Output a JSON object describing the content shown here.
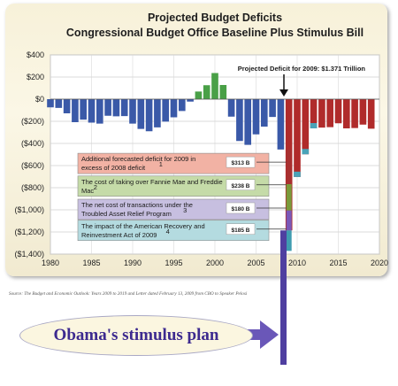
{
  "chart_data": {
    "type": "bar",
    "title": "Projected Budget Deficits",
    "subtitle": "Congressional Budget Office Baseline Plus Stimulus Bill",
    "ylabel": "",
    "xlabel": "",
    "ylim": [
      -1400,
      400
    ],
    "xlim": [
      1980,
      2020
    ],
    "y_ticks": [
      "$400",
      "$200",
      "$0",
      "($200)",
      "($400)",
      "($600)",
      "($800)",
      "($1,000)",
      "($1,200)",
      "($1,400)"
    ],
    "y_tick_values": [
      400,
      200,
      0,
      -200,
      -400,
      -600,
      -800,
      -1000,
      -1200,
      -1400
    ],
    "x_ticks": [
      "1980",
      "1985",
      "1990",
      "1995",
      "2000",
      "2005",
      "2010",
      "2015",
      "2020"
    ],
    "x_tick_values": [
      1980,
      1985,
      1990,
      1995,
      2000,
      2005,
      2010,
      2015,
      2020
    ],
    "grid": true,
    "colors": {
      "deficit": "#3a59a8",
      "surplus": "#49a047",
      "projected": "#b02b2b",
      "stimulus": "#4f3fa0"
    },
    "series": [
      {
        "x": [
          1980,
          1981,
          1982,
          1983,
          1984,
          1985,
          1986,
          1987,
          1988,
          1989,
          1990,
          1991,
          1992,
          1993,
          1994,
          1995,
          1996,
          1997,
          1998,
          1999,
          2000,
          2001,
          2002,
          2003,
          2004,
          2005,
          2006,
          2007,
          2008
        ],
        "values": [
          -74,
          -79,
          -128,
          -208,
          -185,
          -212,
          -221,
          -150,
          -155,
          -153,
          -221,
          -269,
          -290,
          -255,
          -203,
          -164,
          -107,
          -22,
          69,
          126,
          236,
          128,
          -158,
          -378,
          -413,
          -318,
          -248,
          -161,
          -455
        ]
      },
      {
        "x": [
          2009,
          2010,
          2011,
          2012,
          2013,
          2014,
          2015,
          2016,
          2017,
          2018,
          2019
        ],
        "values": [
          -1186,
          -703,
          -498,
          -264,
          -257,
          -253,
          -218,
          -264,
          -261,
          -230,
          -267
        ]
      }
    ],
    "breakdown_2009": [
      {
        "label": "Additional forecasted deficit for 2009 in excess of 2008 deficit",
        "footnote": "1",
        "value": "$313 B",
        "amount": -313,
        "color": "#f2b2a4"
      },
      {
        "label": "The cost of taking over Fannie Mae and Freddie Mac",
        "footnote": "2",
        "value": "$238 B",
        "amount": -238,
        "color": "#c5dba8"
      },
      {
        "label": "The net cost of transactions under the Troubled Asset Relief Program",
        "footnote": "3",
        "value": "$180 B",
        "amount": -180,
        "color": "#c7bfe0"
      },
      {
        "label": "The impact of the American Recovery and Reinvestment Act of 2009",
        "footnote": "4",
        "value": "$185 B",
        "amount": -185,
        "color": "#b4dbe0"
      }
    ],
    "annotation": "Projected Deficit for 2009: $1.371 Trillion"
  },
  "source": "Source: The Budget and Economic Outlook: Years 2009 to 2019 and Letter dated February 13, 2009 from CBO to Speaker Pelosi",
  "caption": "Obama's stimulus plan"
}
